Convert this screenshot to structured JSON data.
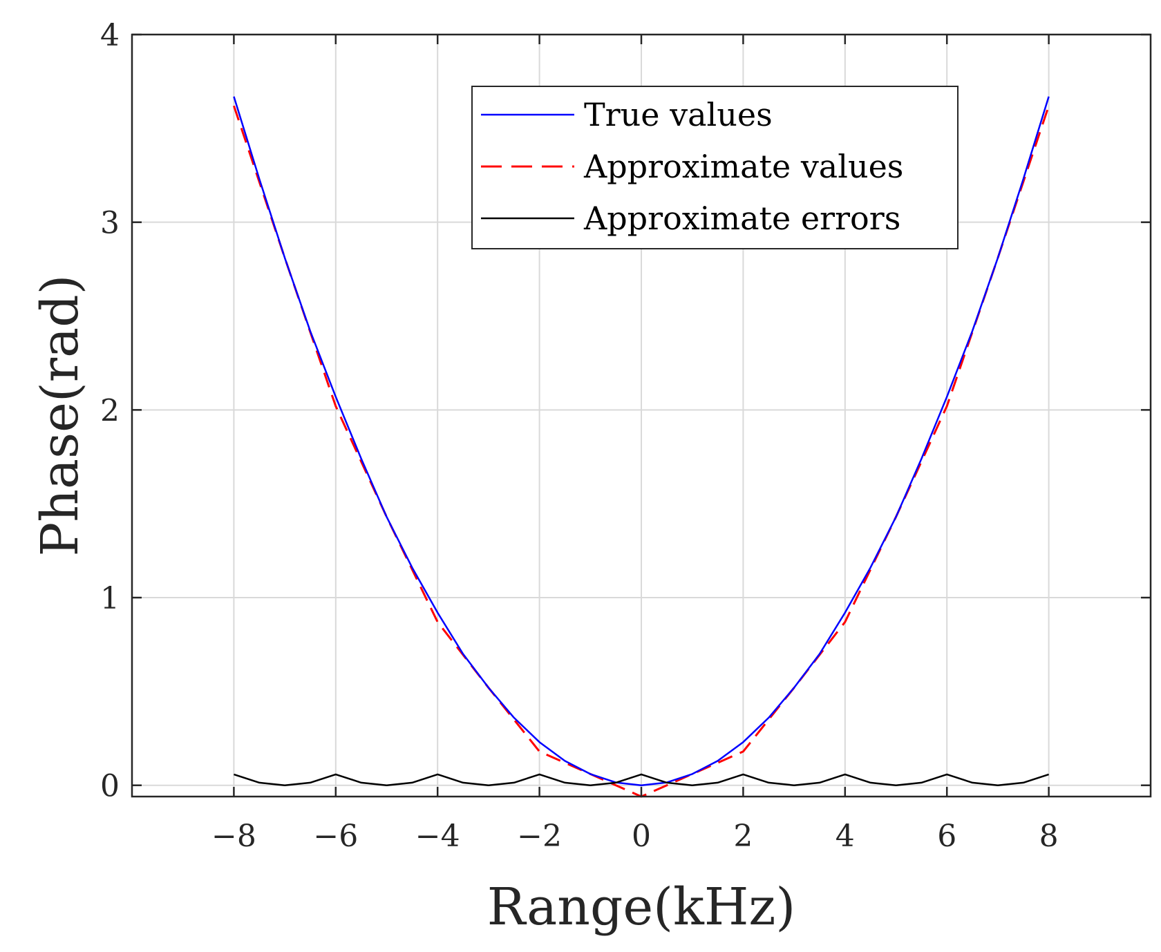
{
  "chart_data": {
    "type": "line",
    "title": "",
    "xlabel": "Range(kHz)",
    "ylabel": "Phase(rad)",
    "xlim": [
      -10,
      10
    ],
    "ylim": [
      -0.06,
      4
    ],
    "xticks": [
      -8,
      -6,
      -4,
      -2,
      0,
      2,
      4,
      6,
      8
    ],
    "xtick_labels": [
      "−8",
      "−6",
      "−4",
      "−2",
      "0",
      "2",
      "4",
      "6",
      "8"
    ],
    "yticks": [
      0,
      1,
      2,
      3,
      4
    ],
    "ytick_labels": [
      "0",
      "1",
      "2",
      "3",
      "4"
    ],
    "grid": true,
    "legend_position": "top-right",
    "series": [
      {
        "name": "True values",
        "color": "#0000ff",
        "style": "solid",
        "x": [
          -8,
          -7.5,
          -7,
          -6.5,
          -6,
          -5.5,
          -5,
          -4.5,
          -4,
          -3.5,
          -3,
          -2.5,
          -2,
          -1.5,
          -1,
          -0.5,
          0,
          0.5,
          1,
          1.5,
          2,
          2.5,
          3,
          3.5,
          4,
          4.5,
          5,
          5.5,
          6,
          6.5,
          7,
          7.5,
          8
        ],
        "y": [
          3.67,
          3.23,
          2.81,
          2.42,
          2.07,
          1.74,
          1.43,
          1.16,
          0.92,
          0.7,
          0.52,
          0.36,
          0.23,
          0.13,
          0.06,
          0.015,
          0,
          0.015,
          0.06,
          0.13,
          0.23,
          0.36,
          0.52,
          0.7,
          0.92,
          1.16,
          1.43,
          1.74,
          2.07,
          2.42,
          2.81,
          3.23,
          3.67
        ]
      },
      {
        "name": "Approximate values",
        "color": "#ff0000",
        "style": "dashed",
        "x": [
          -8,
          -7,
          -6,
          -5,
          -4,
          -3,
          -2,
          -1,
          0,
          1,
          2,
          3,
          4,
          5,
          6,
          7,
          8
        ],
        "y": [
          3.62,
          2.81,
          2.02,
          1.43,
          0.87,
          0.52,
          0.18,
          0.06,
          -0.06,
          0.06,
          0.18,
          0.52,
          0.87,
          1.43,
          2.02,
          2.81,
          3.62
        ]
      },
      {
        "name": "Approximate errors",
        "color": "#000000",
        "style": "solid",
        "x": [
          -8,
          -7.5,
          -7,
          -6.5,
          -6,
          -5.5,
          -5,
          -4.5,
          -4,
          -3.5,
          -3,
          -2.5,
          -2,
          -1.5,
          -1,
          -0.5,
          0,
          0.5,
          1,
          1.5,
          2,
          2.5,
          3,
          3.5,
          4,
          4.5,
          5,
          5.5,
          6,
          6.5,
          7,
          7.5,
          8
        ],
        "y": [
          0.058,
          0.014,
          0,
          0.014,
          0.058,
          0.014,
          0,
          0.014,
          0.058,
          0.014,
          0,
          0.014,
          0.058,
          0.014,
          0,
          0.014,
          0.058,
          0.014,
          0,
          0.014,
          0.058,
          0.014,
          0,
          0.014,
          0.058,
          0.014,
          0,
          0.014,
          0.058,
          0.014,
          0,
          0.014,
          0.058
        ]
      }
    ]
  }
}
